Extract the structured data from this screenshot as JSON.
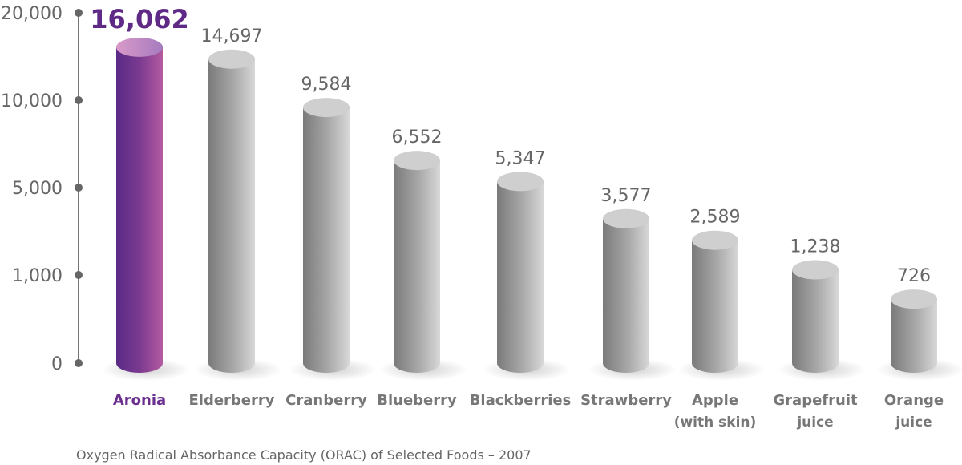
{
  "chart_data": {
    "type": "bar",
    "style": "3d-cylinder",
    "categories": [
      [
        "Aronia"
      ],
      [
        "Elderberry"
      ],
      [
        "Cranberry"
      ],
      [
        "Blueberry"
      ],
      [
        "Blackberries"
      ],
      [
        "Strawberry"
      ],
      [
        "Apple",
        "(with skin)"
      ],
      [
        "Grapefruit",
        "juice"
      ],
      [
        "Orange",
        "juice"
      ]
    ],
    "values": [
      16062,
      14697,
      9584,
      6552,
      5347,
      3577,
      2589,
      1238,
      726
    ],
    "value_labels": [
      "16,062",
      "14,697",
      "9,584",
      "6,552",
      "5,347",
      "3,577",
      "2,589",
      "1,238",
      "726"
    ],
    "highlight_index": 0,
    "y_ticks": [
      0,
      1000,
      5000,
      10000,
      20000
    ],
    "y_tick_labels": [
      "0",
      "1,000",
      "5,000",
      "10,000",
      "20,000"
    ],
    "ylim": [
      0,
      20000
    ],
    "y_scale": "non-linear (equally spaced ticks)",
    "grid": false,
    "caption": "Oxygen Radical Absorbance Capacity (ORAC) of Selected Foods – 2007",
    "colors": {
      "highlight": "#5f2a86",
      "bars": "#b5b5b5",
      "text": "#666666",
      "axis": "#777777"
    }
  }
}
